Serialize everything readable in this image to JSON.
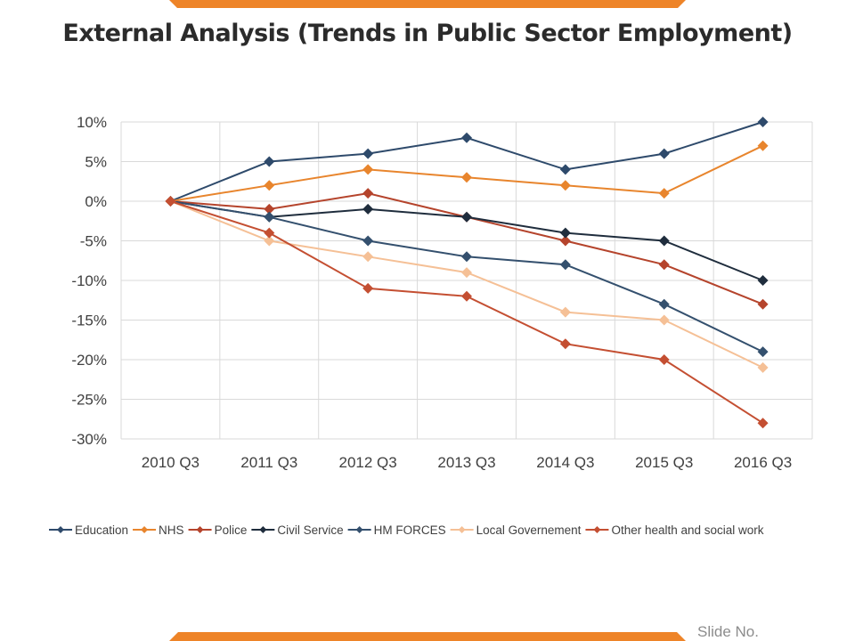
{
  "slide": {
    "title": "External Analysis (Trends in Public Sector Employment)",
    "slide_no": "Slide No."
  },
  "colors": {
    "accent": "#ee8428",
    "grid": "#d9d9d9",
    "axis_text": "#404040"
  },
  "chart_data": {
    "type": "line",
    "title": "",
    "xlabel": "",
    "ylabel": "",
    "categories": [
      "2010 Q3",
      "2011 Q3",
      "2012 Q3",
      "2013 Q3",
      "2014 Q3",
      "2015 Q3",
      "2016 Q3"
    ],
    "ylim": [
      -30,
      10
    ],
    "ytick_step": 5,
    "ytick_labels": [
      "10%",
      "5%",
      "0%",
      "-5%",
      "-10%",
      "-15%",
      "-20%",
      "-25%",
      "-30%"
    ],
    "legend_position": "bottom",
    "grid": true,
    "series": [
      {
        "name": "Education",
        "color": "#2e4a6b",
        "values": [
          0,
          5,
          6,
          8,
          4,
          6,
          10
        ]
      },
      {
        "name": "NHS",
        "color": "#e8852d",
        "values": [
          0,
          2,
          4,
          3,
          2,
          1,
          7
        ]
      },
      {
        "name": "Police",
        "color": "#b5442c",
        "values": [
          0,
          -1,
          1,
          -2,
          -5,
          -8,
          -13
        ]
      },
      {
        "name": "Civil Service",
        "color": "#1f2d3d",
        "values": [
          0,
          -2,
          -1,
          -2,
          -4,
          -5,
          -10
        ]
      },
      {
        "name": "HM FORCES",
        "color": "#34506e",
        "values": [
          0,
          -2,
          -5,
          -7,
          -8,
          -13,
          -19
        ]
      },
      {
        "name": "Local Governement",
        "color": "#f5c096",
        "values": [
          0,
          -5,
          -7,
          -9,
          -14,
          -15,
          -21
        ]
      },
      {
        "name": "Other health and social work",
        "color": "#c44f32",
        "values": [
          0,
          -4,
          -11,
          -12,
          -18,
          -20,
          -28
        ]
      }
    ]
  }
}
